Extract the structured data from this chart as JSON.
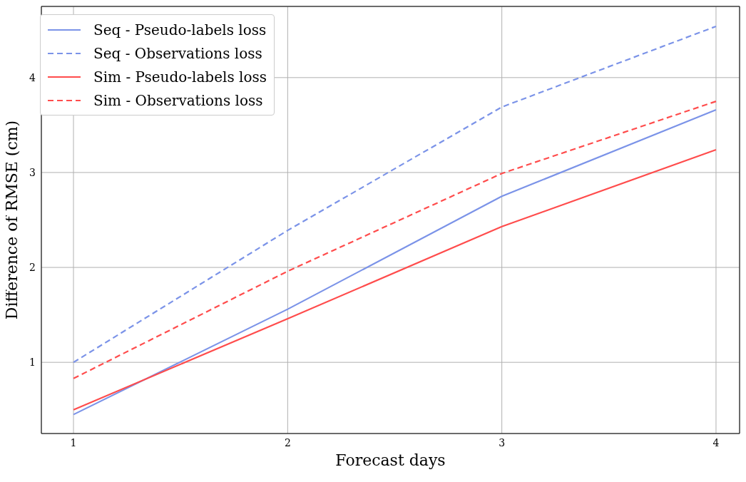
{
  "chart_data": {
    "type": "line",
    "xlabel": "Forecast days",
    "ylabel": "Difference of RMSE (cm)",
    "x": [
      1,
      2,
      3,
      4
    ],
    "series": [
      {
        "name": "Seq - Pseudo-labels loss",
        "color": "#7b93e8",
        "line_style": "solid",
        "values": [
          0.45,
          1.56,
          2.75,
          3.66
        ]
      },
      {
        "name": "Seq - Observations loss",
        "color": "#7b93e8",
        "line_style": "dashed",
        "values": [
          1.0,
          2.39,
          3.69,
          4.54
        ]
      },
      {
        "name": "Sim - Pseudo-labels loss",
        "color": "#ff4c4c",
        "line_style": "solid",
        "values": [
          0.5,
          1.46,
          2.43,
          3.24
        ]
      },
      {
        "name": "Sim - Observations loss",
        "color": "#ff4c4c",
        "line_style": "dashed",
        "values": [
          0.83,
          1.96,
          2.99,
          3.75
        ]
      }
    ],
    "xlim": [
      0.85,
      4.11
    ],
    "xticks": [
      1,
      2,
      3,
      4
    ],
    "ylim": [
      0.25,
      4.75
    ],
    "yticks": [
      1,
      2,
      3,
      4
    ],
    "grid": true,
    "legend": "top left",
    "marker": "none"
  }
}
